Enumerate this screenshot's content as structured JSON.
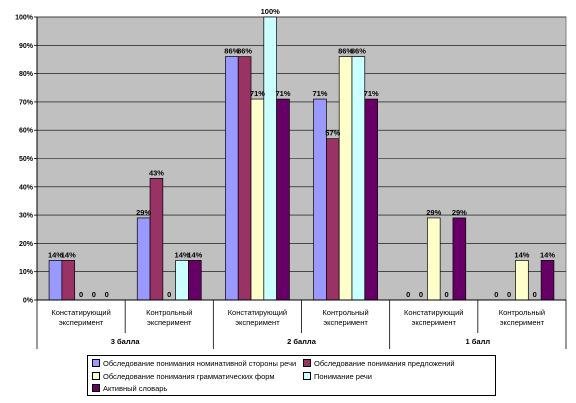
{
  "chart_data": {
    "type": "bar",
    "ylim": [
      0,
      100
    ],
    "ytick_labels": [
      "0%",
      "10%",
      "20%",
      "30%",
      "40%",
      "50%",
      "60%",
      "70%",
      "80%",
      "90%",
      "100%"
    ],
    "groups": [
      {
        "label": "3 балла",
        "categories": [
          "Констатирующий эксперимент",
          "Контрольный эксперимент"
        ]
      },
      {
        "label": "2 балла",
        "categories": [
          "Констатирующий эксперимент",
          "Контрольный эксперимент"
        ]
      },
      {
        "label": "1 балл",
        "categories": [
          "Констатирующий эксперимент",
          "Контрольный эксперимент"
        ]
      }
    ],
    "series": [
      {
        "name": "Обследование понимания номинативной стороны речи",
        "color": "#9999ff",
        "values": [
          14,
          29,
          86,
          71,
          0,
          0
        ],
        "labels": [
          "14%",
          "29%",
          "86%",
          "71%",
          "0",
          "0"
        ]
      },
      {
        "name": "Обследование понимания предложений",
        "color": "#993366",
        "values": [
          14,
          43,
          86,
          57,
          0,
          0
        ],
        "labels": [
          "14%",
          "43%",
          "86%",
          "57%",
          "0",
          "0"
        ]
      },
      {
        "name": "Обследование понимания грамматических форм",
        "color": "#ffffcc",
        "values": [
          0,
          0,
          71,
          86,
          29,
          14
        ],
        "labels": [
          "0",
          "0",
          "71%",
          "86%",
          "29%",
          "14%"
        ]
      },
      {
        "name": "Понимание речи",
        "color": "#ccffff",
        "values": [
          0,
          14,
          100,
          86,
          0,
          0
        ],
        "labels": [
          "0",
          "14%",
          "100%",
          "86%",
          "0",
          "0"
        ]
      },
      {
        "name": "Активный словарь",
        "color": "#660066",
        "values": [
          0,
          14,
          71,
          71,
          29,
          14
        ],
        "labels": [
          "0",
          "14%",
          "71%",
          "71%",
          "29%",
          "14%"
        ]
      }
    ],
    "plot_background": "#c0c0c0",
    "grid": true,
    "legend_position": "bottom"
  }
}
